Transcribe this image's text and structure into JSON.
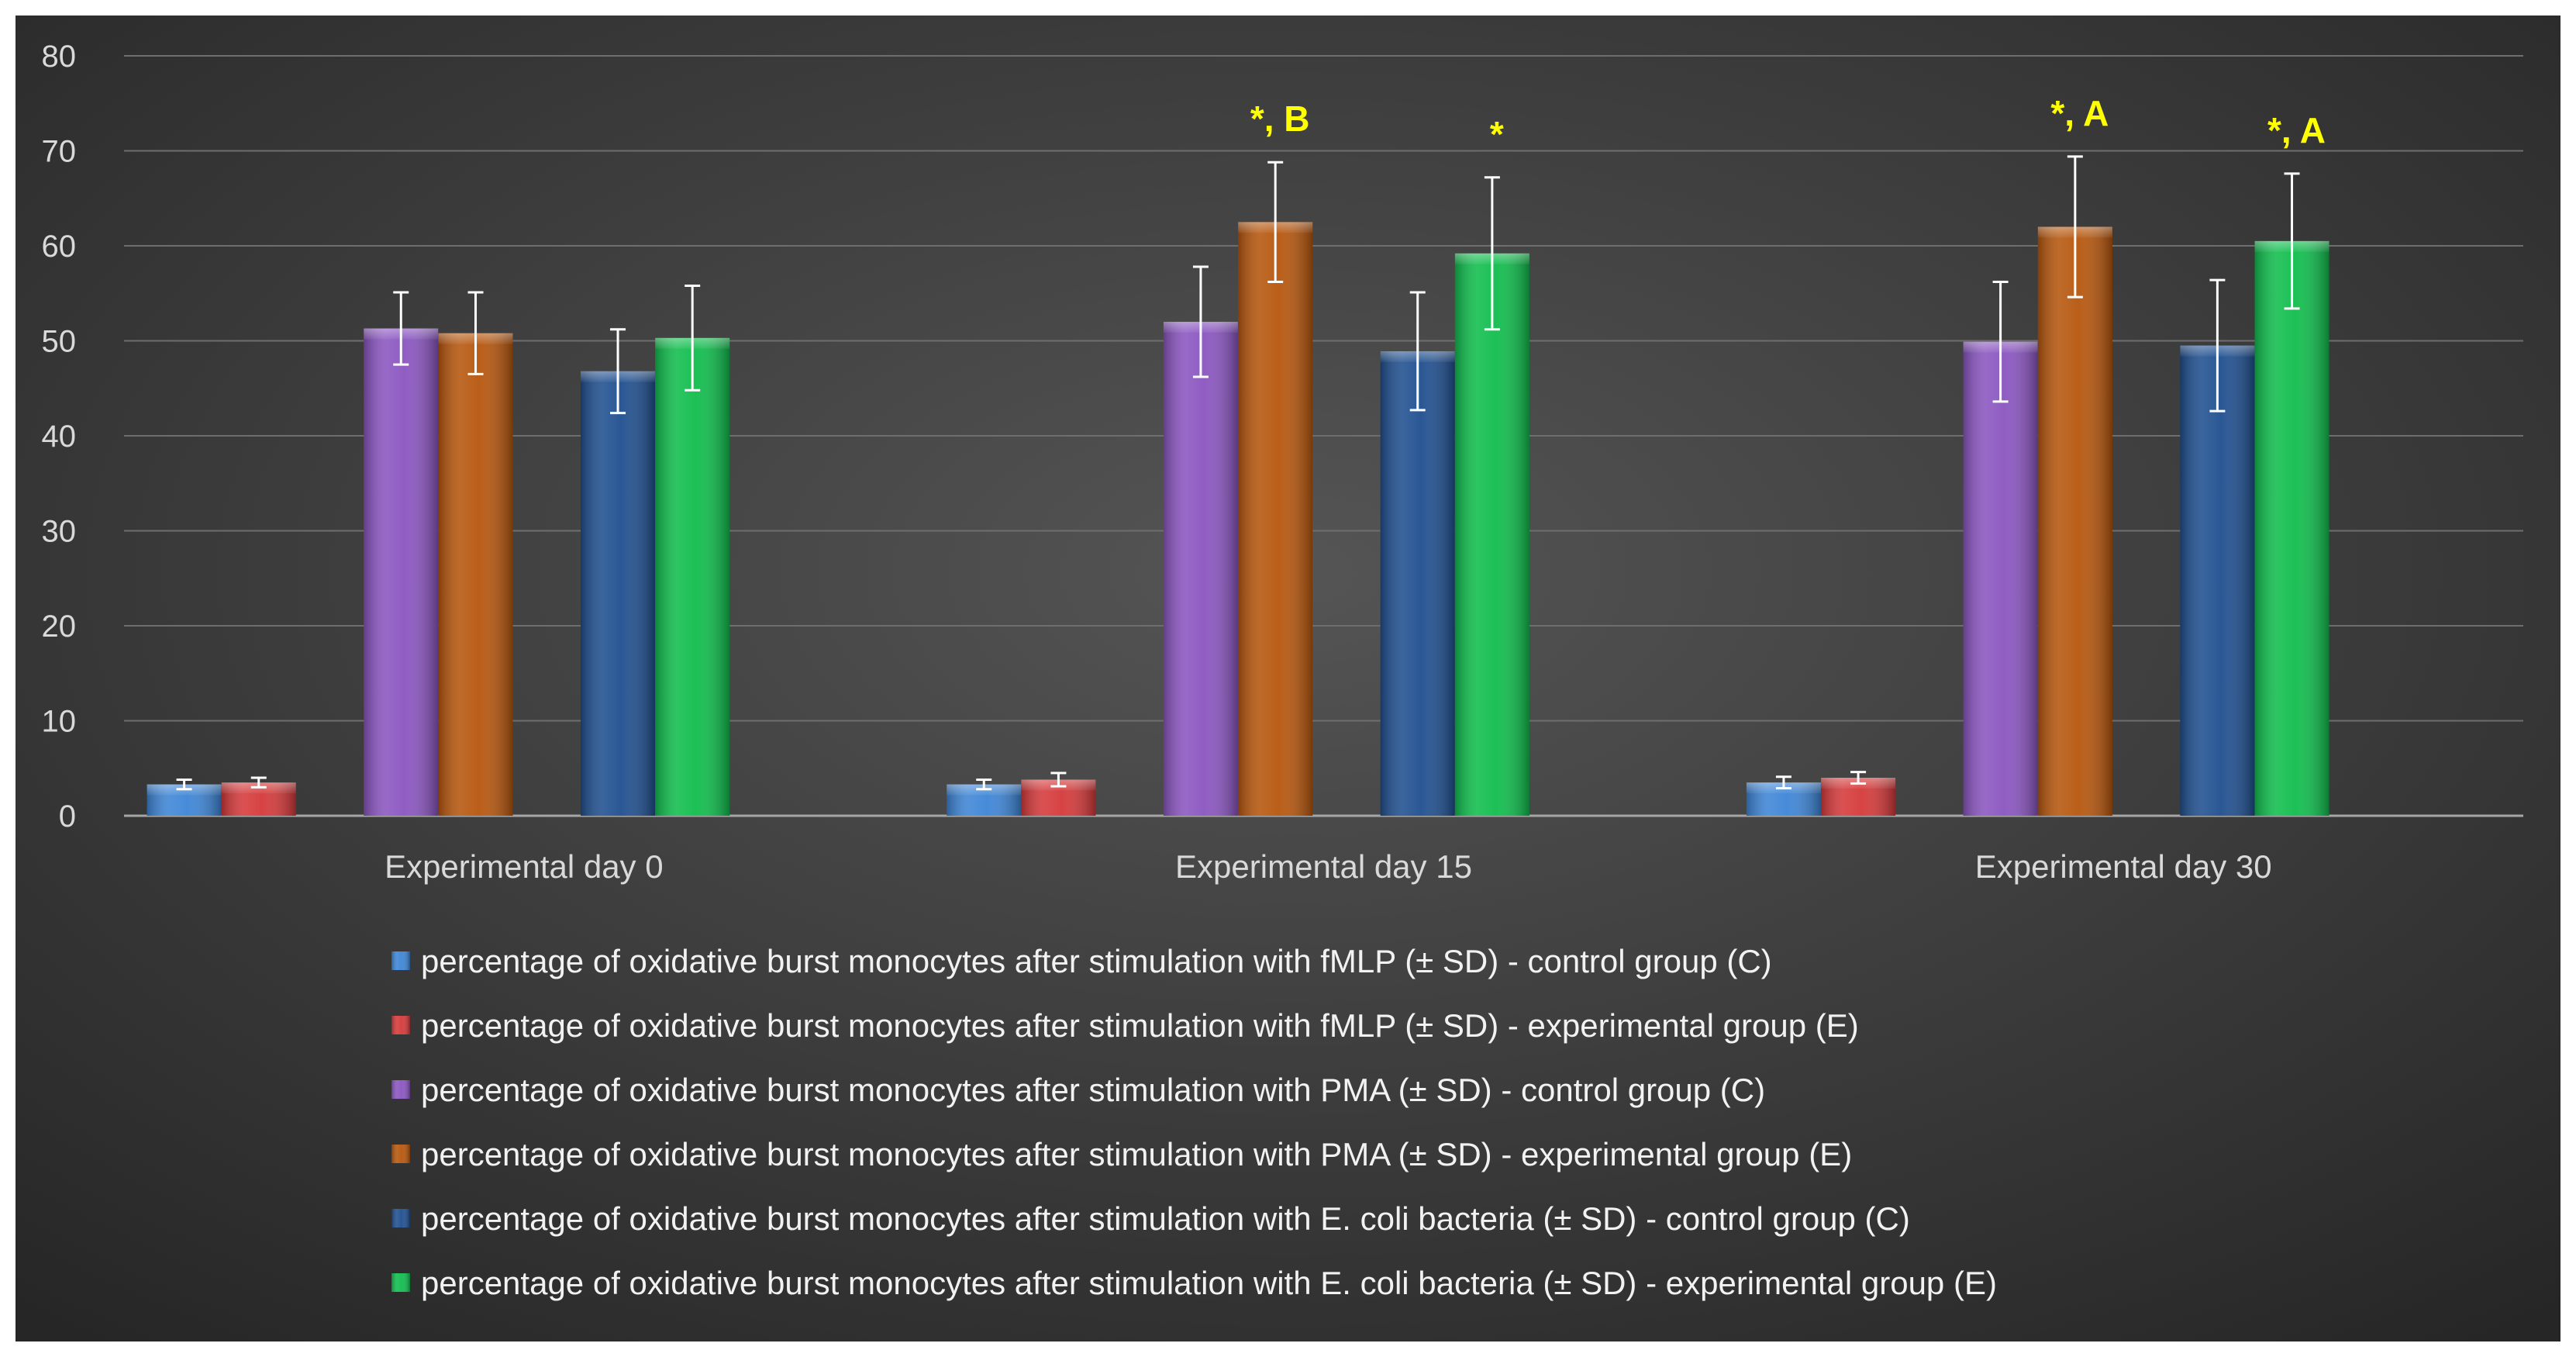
{
  "colors": {
    "background_center": "#555555",
    "background_edge": "#262626",
    "grid": "#6e6e6e",
    "axis_text": "#d9d9d9",
    "legend_text": "#f2f2f2",
    "annotation": "#ffff00",
    "error_bar": "#ffffff"
  },
  "chart_data": {
    "type": "bar",
    "title": "",
    "xlabel": "",
    "ylabel": "",
    "ylim": [
      0,
      80
    ],
    "yticks": [
      0,
      10,
      20,
      30,
      40,
      50,
      60,
      70,
      80
    ],
    "grid": true,
    "legend_position": "bottom",
    "categories": [
      "Experimental day 0",
      "Experimental day 15",
      "Experimental day 30"
    ],
    "series": [
      {
        "name": "percentage of oxidative burst monocytes after stimulation with fMLP (± SD) - control group (C)",
        "color": "#3d85d6",
        "values": [
          3.3,
          3.3,
          3.5
        ],
        "sd": [
          0.5,
          0.5,
          0.6
        ]
      },
      {
        "name": "percentage of oxidative burst monocytes after stimulation with fMLP (± SD) - experimental group (E)",
        "color": "#d5393a",
        "values": [
          3.5,
          3.8,
          4.0
        ],
        "sd": [
          0.5,
          0.7,
          0.6
        ]
      },
      {
        "name": "percentage of oxidative burst monocytes after stimulation with PMA (± SD) - control group (C)",
        "color": "#8a55c0",
        "values": [
          51.3,
          52.0,
          49.9
        ],
        "sd": [
          3.8,
          5.8,
          6.3
        ]
      },
      {
        "name": "percentage of oxidative burst monocytes after stimulation with PMA (± SD) - experimental group (E)",
        "color": "#b6560d",
        "values": [
          50.8,
          62.5,
          62.0
        ],
        "sd": [
          4.3,
          6.3,
          7.4
        ]
      },
      {
        "name": "percentage of oxidative burst monocytes after stimulation with E. coli bacteria (± SD) - control group (C)",
        "color": "#1f4f8f",
        "values": [
          46.8,
          48.9,
          49.5
        ],
        "sd": [
          4.4,
          6.2,
          6.9
        ]
      },
      {
        "name": "percentage of oxidative burst monocytes after stimulation with E. coli bacteria (± SD) - experimental group (E)",
        "color": "#10bd4d",
        "values": [
          50.3,
          59.2,
          60.5
        ],
        "sd": [
          5.5,
          8.0,
          7.1
        ]
      }
    ],
    "annotations": [
      {
        "text": "*, B",
        "category": 1,
        "series": 3
      },
      {
        "text": "*",
        "category": 1,
        "series": 5
      },
      {
        "text": "*, A",
        "category": 2,
        "series": 3
      },
      {
        "text": "*, A",
        "category": 2,
        "series": 5
      }
    ]
  }
}
